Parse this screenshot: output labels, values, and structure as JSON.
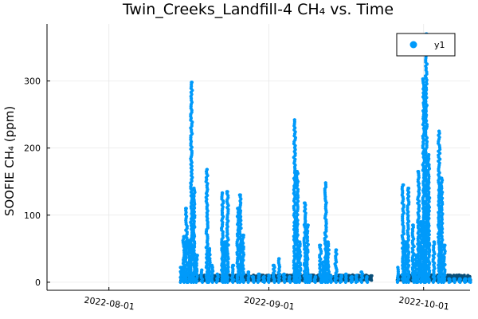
{
  "chart_data": {
    "type": "scatter",
    "title": "Twin_Creeks_Landfill-4 CH₄ vs. Time",
    "xlabel": "",
    "ylabel": "SOOFIE CH₄ (ppm)",
    "x_type": "date",
    "xlim": [
      "2022-07-20",
      "2022-10-10"
    ],
    "ylim": [
      -12,
      385
    ],
    "x_ticks": [
      "2022-08-01",
      "2022-09-01",
      "2022-10-01"
    ],
    "y_ticks": [
      0,
      100,
      200,
      300
    ],
    "grid": true,
    "legend": {
      "position": "top-right",
      "entries": [
        "y1"
      ]
    },
    "colors": {
      "series": "#009AFA",
      "baseline": "#0A4E78",
      "frame": "#000000",
      "grid": "#E8E8E8"
    },
    "series": [
      {
        "name": "y1",
        "spikes": [
          {
            "x": "2022-08-15",
            "y": [
              0,
              22
            ]
          },
          {
            "x": "2022-08-15T12:00",
            "y": [
              0,
              68
            ]
          },
          {
            "x": "2022-08-16",
            "y": [
              0,
              110
            ]
          },
          {
            "x": "2022-08-16T12:00",
            "y": [
              0,
              62
            ]
          },
          {
            "x": "2022-08-17",
            "y": [
              0,
              298
            ]
          },
          {
            "x": "2022-08-17T12:00",
            "y": [
              0,
              140
            ]
          },
          {
            "x": "2022-08-18",
            "y": [
              0,
              40
            ]
          },
          {
            "x": "2022-08-19",
            "y": [
              0,
              18
            ]
          },
          {
            "x": "2022-08-20",
            "y": [
              0,
              168
            ]
          },
          {
            "x": "2022-08-20T12:00",
            "y": [
              0,
              50
            ]
          },
          {
            "x": "2022-08-21",
            "y": [
              0,
              25
            ]
          },
          {
            "x": "2022-08-22",
            "y": [
              0,
              12
            ]
          },
          {
            "x": "2022-08-23",
            "y": [
              0,
              133
            ]
          },
          {
            "x": "2022-08-23T12:00",
            "y": [
              0,
              60
            ]
          },
          {
            "x": "2022-08-24",
            "y": [
              0,
              135
            ]
          },
          {
            "x": "2022-08-25",
            "y": [
              0,
              25
            ]
          },
          {
            "x": "2022-08-26",
            "y": [
              0,
              110
            ]
          },
          {
            "x": "2022-08-26T12:00",
            "y": [
              0,
              130
            ]
          },
          {
            "x": "2022-08-27",
            "y": [
              0,
              70
            ]
          },
          {
            "x": "2022-08-28",
            "y": [
              0,
              15
            ]
          },
          {
            "x": "2022-08-29",
            "y": [
              0,
              8
            ]
          },
          {
            "x": "2022-08-30",
            "y": [
              0,
              12
            ]
          },
          {
            "x": "2022-08-31",
            "y": [
              0,
              8
            ]
          },
          {
            "x": "2022-09-01",
            "y": [
              0,
              10
            ]
          },
          {
            "x": "2022-09-02",
            "y": [
              0,
              25
            ]
          },
          {
            "x": "2022-09-03",
            "y": [
              0,
              35
            ]
          },
          {
            "x": "2022-09-04",
            "y": [
              0,
              12
            ]
          },
          {
            "x": "2022-09-05",
            "y": [
              0,
              8
            ]
          },
          {
            "x": "2022-09-06",
            "y": [
              0,
              242
            ]
          },
          {
            "x": "2022-09-06T12:00",
            "y": [
              0,
              165
            ]
          },
          {
            "x": "2022-09-07",
            "y": [
              0,
              60
            ]
          },
          {
            "x": "2022-09-08",
            "y": [
              0,
              118
            ]
          },
          {
            "x": "2022-09-08T12:00",
            "y": [
              0,
              85
            ]
          },
          {
            "x": "2022-09-09",
            "y": [
              0,
              10
            ]
          },
          {
            "x": "2022-09-10",
            "y": [
              0,
              8
            ]
          },
          {
            "x": "2022-09-11",
            "y": [
              0,
              55
            ]
          },
          {
            "x": "2022-09-11T12:00",
            "y": [
              0,
              30
            ]
          },
          {
            "x": "2022-09-12",
            "y": [
              0,
              148
            ]
          },
          {
            "x": "2022-09-12T12:00",
            "y": [
              0,
              60
            ]
          },
          {
            "x": "2022-09-13",
            "y": [
              0,
              10
            ]
          },
          {
            "x": "2022-09-14",
            "y": [
              0,
              48
            ]
          },
          {
            "x": "2022-09-15",
            "y": [
              0,
              10
            ]
          },
          {
            "x": "2022-09-16",
            "y": [
              0,
              12
            ]
          },
          {
            "x": "2022-09-17",
            "y": [
              0,
              8
            ]
          },
          {
            "x": "2022-09-18",
            "y": [
              0,
              10
            ]
          },
          {
            "x": "2022-09-19",
            "y": [
              0,
              15
            ]
          },
          {
            "x": "2022-09-20",
            "y": [
              0,
              8
            ]
          },
          {
            "x": "2022-09-26",
            "y": [
              0,
              22
            ]
          },
          {
            "x": "2022-09-27",
            "y": [
              0,
              145
            ]
          },
          {
            "x": "2022-09-27T12:00",
            "y": [
              0,
              60
            ]
          },
          {
            "x": "2022-09-28",
            "y": [
              0,
              140
            ]
          },
          {
            "x": "2022-09-29",
            "y": [
              0,
              85
            ]
          },
          {
            "x": "2022-09-29T12:00",
            "y": [
              0,
              40
            ]
          },
          {
            "x": "2022-09-30",
            "y": [
              0,
              165
            ]
          },
          {
            "x": "2022-09-30T12:00",
            "y": [
              0,
              90
            ]
          },
          {
            "x": "2022-10-01",
            "y": [
              0,
              303
            ]
          },
          {
            "x": "2022-10-01T12:00",
            "y": [
              0,
              370
            ]
          },
          {
            "x": "2022-10-02",
            "y": [
              0,
              190
            ]
          },
          {
            "x": "2022-10-03",
            "y": [
              0,
              60
            ]
          },
          {
            "x": "2022-10-04",
            "y": [
              0,
              225
            ]
          },
          {
            "x": "2022-10-04T12:00",
            "y": [
              0,
              155
            ]
          },
          {
            "x": "2022-10-05",
            "y": [
              0,
              55
            ]
          },
          {
            "x": "2022-10-06",
            "y": [
              0,
              5
            ]
          },
          {
            "x": "2022-10-07",
            "y": [
              0,
              5
            ]
          },
          {
            "x": "2022-10-08",
            "y": [
              0,
              5
            ]
          },
          {
            "x": "2022-10-09",
            "y": [
              0,
              5
            ]
          },
          {
            "x": "2022-10-10",
            "y": [
              0,
              5
            ]
          }
        ]
      }
    ]
  }
}
